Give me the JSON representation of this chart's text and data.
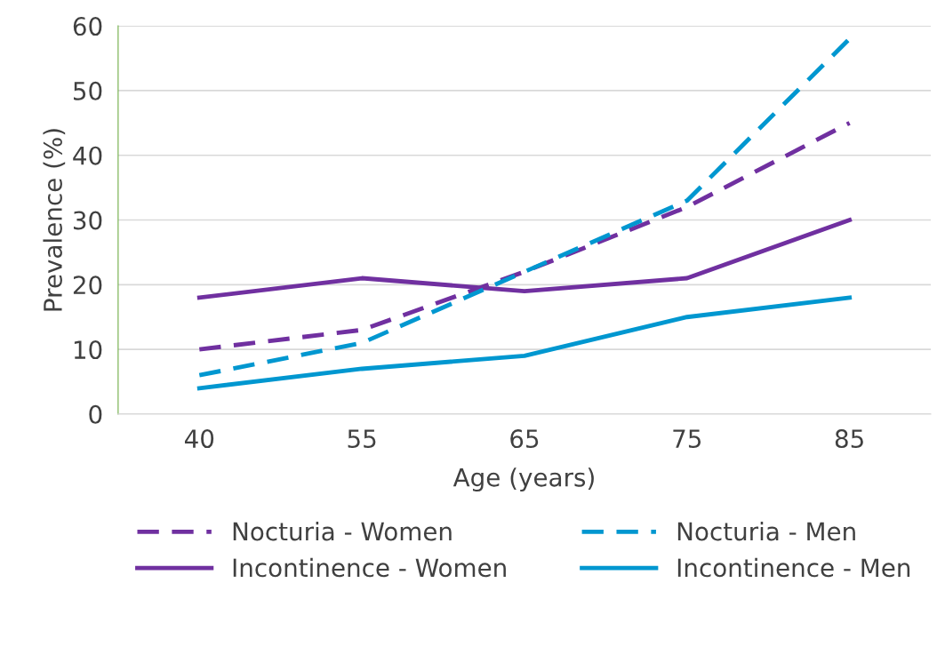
{
  "chart_data": {
    "type": "line",
    "xlabel": "Age (years)",
    "ylabel": "Prevalence (%)",
    "categories": [
      "40",
      "55",
      "65",
      "75",
      "85"
    ],
    "series": [
      {
        "name": "Nocturia - Women",
        "color": "#7030a0",
        "line_style": "dashed",
        "values": [
          10,
          13,
          22,
          32,
          45
        ]
      },
      {
        "name": "Incontinence - Women",
        "color": "#7030a0",
        "line_style": "solid",
        "values": [
          18,
          21,
          19,
          21,
          30
        ]
      },
      {
        "name": "Nocturia - Men",
        "color": "#0097d0",
        "line_style": "dashed",
        "values": [
          6,
          11,
          22,
          33,
          58
        ]
      },
      {
        "name": "Incontinence - Men",
        "color": "#0097d0",
        "line_style": "solid",
        "values": [
          4,
          7,
          9,
          15,
          18
        ]
      }
    ],
    "ylim": [
      0,
      60
    ],
    "yticks": [
      0,
      10,
      20,
      30,
      40,
      50,
      60
    ],
    "grid": "y",
    "legend": "bottom",
    "marker": "none"
  }
}
